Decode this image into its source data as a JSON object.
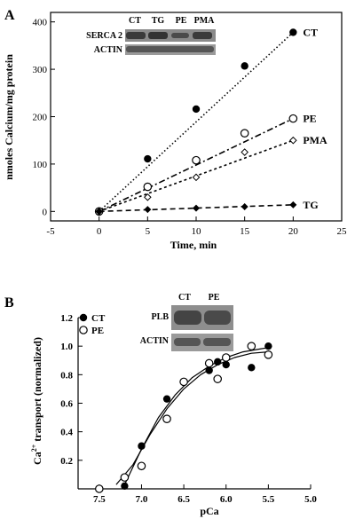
{
  "chart_data": [
    {
      "panel": "A",
      "type": "scatter",
      "xlabel": "Time, min",
      "ylabel": "nmoles Calcium/mg protein",
      "xlim": [
        -5,
        25
      ],
      "ylim": [
        -20,
        420
      ],
      "xticks": [
        -5,
        0,
        5,
        10,
        15,
        20,
        25
      ],
      "yticks": [
        0,
        100,
        200,
        300,
        400
      ],
      "series": [
        {
          "name": "CT",
          "marker": "filled-circle",
          "line": "dotted",
          "x": [
            0,
            5,
            10,
            15,
            20
          ],
          "y": [
            0,
            111,
            216,
            307,
            378
          ]
        },
        {
          "name": "PE",
          "marker": "open-circle",
          "line": "dash-dot",
          "x": [
            0,
            5,
            10,
            15,
            20
          ],
          "y": [
            0,
            52,
            108,
            165,
            196
          ]
        },
        {
          "name": "PMA",
          "marker": "open-diamond",
          "line": "dashed-short",
          "x": [
            0,
            5,
            10,
            15,
            20
          ],
          "y": [
            0,
            30,
            72,
            125,
            150
          ]
        },
        {
          "name": "TG",
          "marker": "filled-diamond",
          "line": "dashed",
          "x": [
            0,
            5,
            10,
            15,
            20
          ],
          "y": [
            0,
            4,
            7,
            10,
            14
          ]
        }
      ]
    },
    {
      "panel": "B",
      "type": "scatter",
      "xlabel": "pCa",
      "ylabel": "Ca2+ transport (normalized)",
      "xlim": [
        7.75,
        5.0
      ],
      "ylim": [
        0,
        1.2
      ],
      "xticks": [
        7.5,
        7.0,
        6.5,
        6.0,
        5.5,
        5.0
      ],
      "xtick_labels": [
        "7.5",
        "7.0",
        "6.5",
        "6.0",
        "5.5",
        "5.0"
      ],
      "yticks": [
        0.2,
        0.4,
        0.6,
        0.8,
        1.0,
        1.2
      ],
      "ytick_labels": [
        "0.2",
        "0.4",
        "0.6",
        "0.8",
        "1.0",
        "1.2"
      ],
      "legend": "top-left",
      "series": [
        {
          "name": "CT",
          "marker": "filled-circle",
          "x": [
            7.2,
            7.0,
            6.7,
            6.2,
            6.1,
            6.0,
            5.7,
            5.5
          ],
          "y": [
            0.02,
            0.3,
            0.63,
            0.83,
            0.89,
            0.87,
            0.85,
            1.0
          ]
        },
        {
          "name": "PE",
          "marker": "open-circle",
          "x": [
            7.5,
            7.2,
            7.0,
            6.7,
            6.5,
            6.2,
            6.1,
            6.0,
            5.7,
            5.5
          ],
          "y": [
            0.0,
            0.08,
            0.16,
            0.49,
            0.75,
            0.88,
            0.77,
            0.92,
            1.0,
            0.94
          ]
        }
      ],
      "fits": [
        {
          "name": "CT",
          "x": [
            7.2,
            7.0,
            6.8,
            6.6,
            6.4,
            6.2,
            6.0,
            5.8,
            5.6,
            5.5
          ],
          "y": [
            0.03,
            0.28,
            0.5,
            0.66,
            0.78,
            0.86,
            0.92,
            0.96,
            0.98,
            0.99
          ]
        },
        {
          "name": "PE",
          "x": [
            7.3,
            7.1,
            6.9,
            6.7,
            6.5,
            6.3,
            6.1,
            5.9,
            5.7,
            5.5
          ],
          "y": [
            0.03,
            0.17,
            0.38,
            0.56,
            0.7,
            0.8,
            0.87,
            0.92,
            0.95,
            0.96
          ]
        }
      ]
    }
  ],
  "panels": {
    "a": {
      "letter": "A"
    },
    "b": {
      "letter": "B"
    }
  },
  "blots": {
    "a": {
      "col_labels": [
        "CT",
        "TG",
        "PE",
        "PMA"
      ],
      "row_labels": [
        "SERCA 2",
        "ACTIN"
      ]
    },
    "b": {
      "col_labels": [
        "CT",
        "PE"
      ],
      "row_labels": [
        "PLB",
        "ACTIN"
      ]
    }
  },
  "ylabel_b": {
    "prefix": "Ca",
    "sup": "2+",
    "rest": " transport (normalized)"
  }
}
